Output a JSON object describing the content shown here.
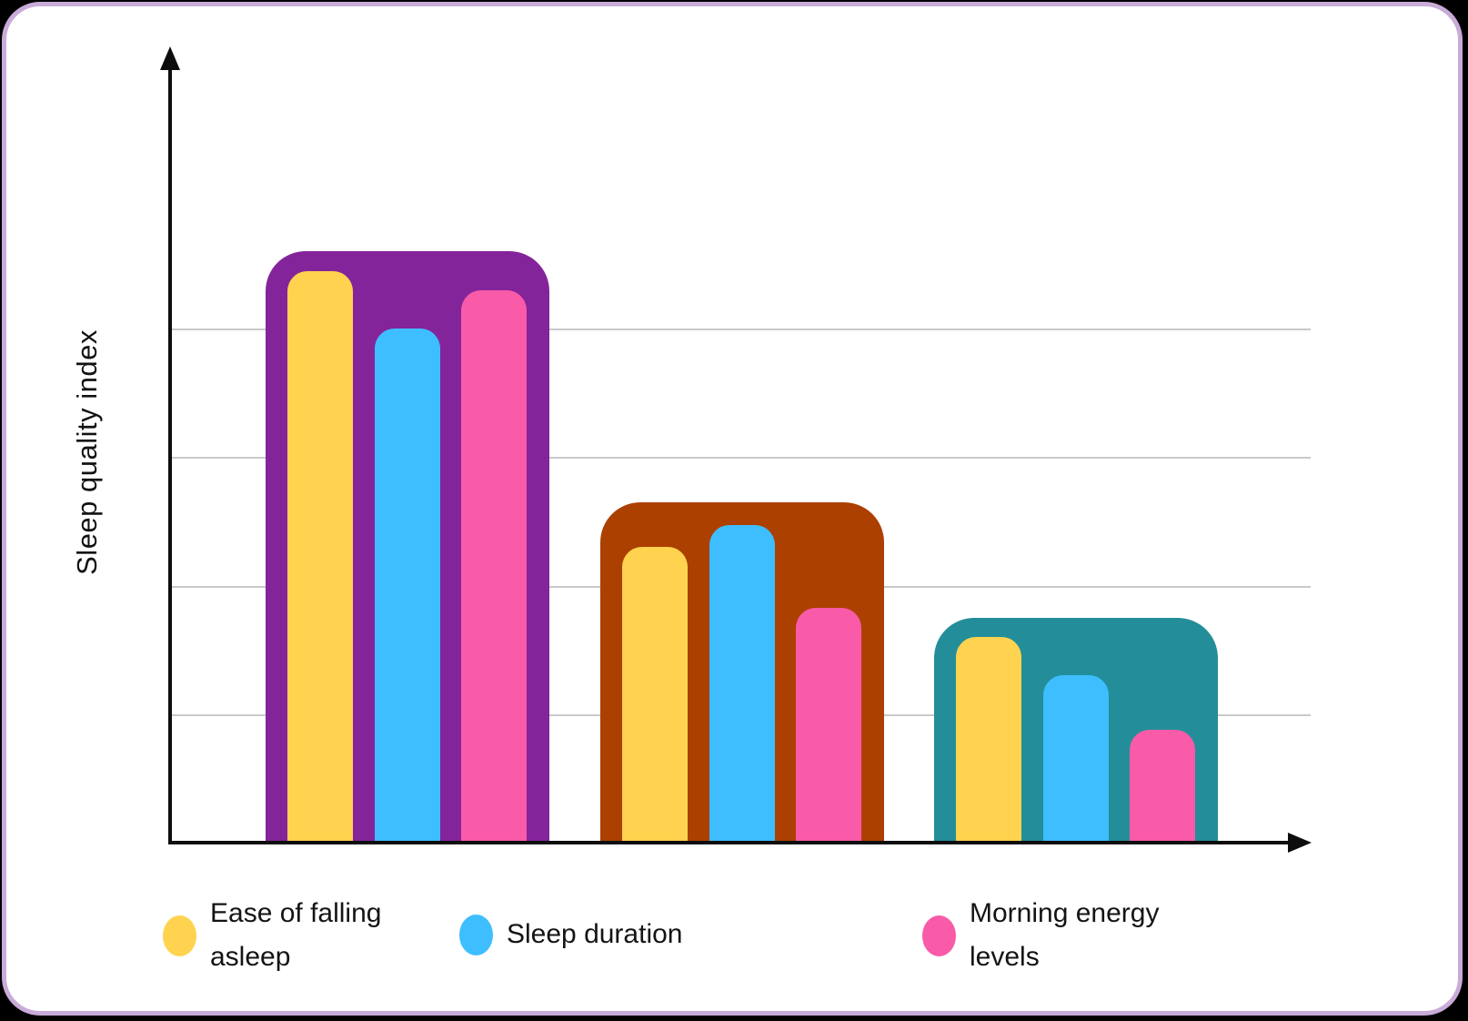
{
  "page": {
    "background_color": "#000000",
    "card_background": "#FFFFFF",
    "card_border_color": "#C9ABD8",
    "axis_color": "#0D0D0D",
    "gridline_color": "#C9C9C9"
  },
  "chart_data": {
    "type": "bar",
    "title": "",
    "xlabel": "",
    "ylabel": "Sleep quality index",
    "ylim": [
      0,
      100
    ],
    "grid": true,
    "gridline_values": [
      20,
      40,
      60,
      80
    ],
    "legend_position": "bottom",
    "categories": [
      "",
      "",
      ""
    ],
    "series": [
      {
        "name": "Ease of falling asleep",
        "color": "#FFD34F",
        "values": [
          89,
          46,
          32
        ]
      },
      {
        "name": "Sleep duration",
        "color": "#3EBEFF",
        "values": [
          80,
          49.5,
          26
        ]
      },
      {
        "name": "Morning energy levels",
        "color": "#F95BA8",
        "values": [
          86,
          36.5,
          17.5
        ]
      }
    ],
    "group_containers": [
      {
        "color": "#84249B",
        "value": 92
      },
      {
        "color": "#AC4000",
        "value": 53
      },
      {
        "color": "#238E99",
        "value": 35
      }
    ]
  },
  "legend": {
    "items": [
      {
        "label": "Ease of falling\nasleep",
        "color": "#FFD34F"
      },
      {
        "label": "Sleep duration",
        "color": "#3EBEFF"
      },
      {
        "label": "Morning energy\nlevels",
        "color": "#F95BA8"
      }
    ]
  }
}
